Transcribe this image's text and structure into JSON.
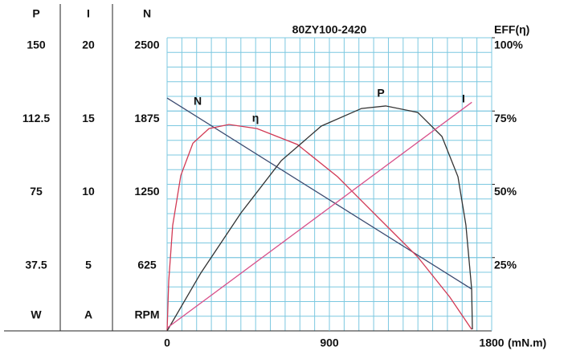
{
  "chart_data": {
    "type": "line",
    "title": "80ZY100-2420",
    "xlabel": "(mN.m)",
    "xlim": [
      0,
      1800
    ],
    "xticks": [
      0,
      900,
      1800
    ],
    "grid": true,
    "grid_color": "#7cc8e0",
    "axes": [
      {
        "name": "P",
        "unit": "W",
        "lim": [
          0,
          150
        ],
        "ticks": [
          37.5,
          75,
          112.5,
          150
        ]
      },
      {
        "name": "I",
        "unit": "A",
        "lim": [
          0,
          20
        ],
        "ticks": [
          5,
          10,
          15,
          20
        ]
      },
      {
        "name": "N",
        "unit": "RPM",
        "lim": [
          0,
          2500
        ],
        "ticks": [
          625,
          1250,
          1875,
          2500
        ]
      },
      {
        "name": "EFF(η)",
        "lim": [
          0,
          100
        ],
        "ticks": [
          {
            "value": 25,
            "label": "25%"
          },
          {
            "value": 50,
            "label": "50%"
          },
          {
            "value": 75,
            "label": "75%"
          },
          {
            "value": 100,
            "label": "100%"
          }
        ]
      }
    ],
    "series": [
      {
        "name": "N",
        "axis": "N",
        "color": "#3b4a70",
        "x": [
          0,
          1690
        ],
        "values": [
          1986,
          356
        ]
      },
      {
        "name": "η",
        "axis": "EFF(η)",
        "color": "#d23a55",
        "x": [
          0,
          9,
          31,
          76,
          143,
          232,
          343,
          499,
          722,
          945,
          1167,
          1390,
          1568,
          1689
        ],
        "values": [
          0,
          17,
          36,
          53,
          64,
          69,
          70.4,
          69,
          63.6,
          52.6,
          38.9,
          25.2,
          11.5,
          0.5
        ]
      },
      {
        "name": "P",
        "axis": "P",
        "color": "#333333",
        "x": [
          0,
          187,
          410,
          633,
          855,
          1078,
          1212,
          1390,
          1524,
          1613,
          1657,
          1689,
          1693
        ],
        "values": [
          0,
          29.6,
          60.4,
          87.1,
          104.8,
          113.8,
          115.1,
          111.8,
          99.5,
          78.9,
          54.2,
          21.4,
          0.8
        ]
      },
      {
        "name": "I",
        "axis": "I",
        "color": "#d8508a",
        "x": [
          0,
          1690
        ],
        "values": [
          0.2,
          15.6
        ]
      }
    ]
  }
}
